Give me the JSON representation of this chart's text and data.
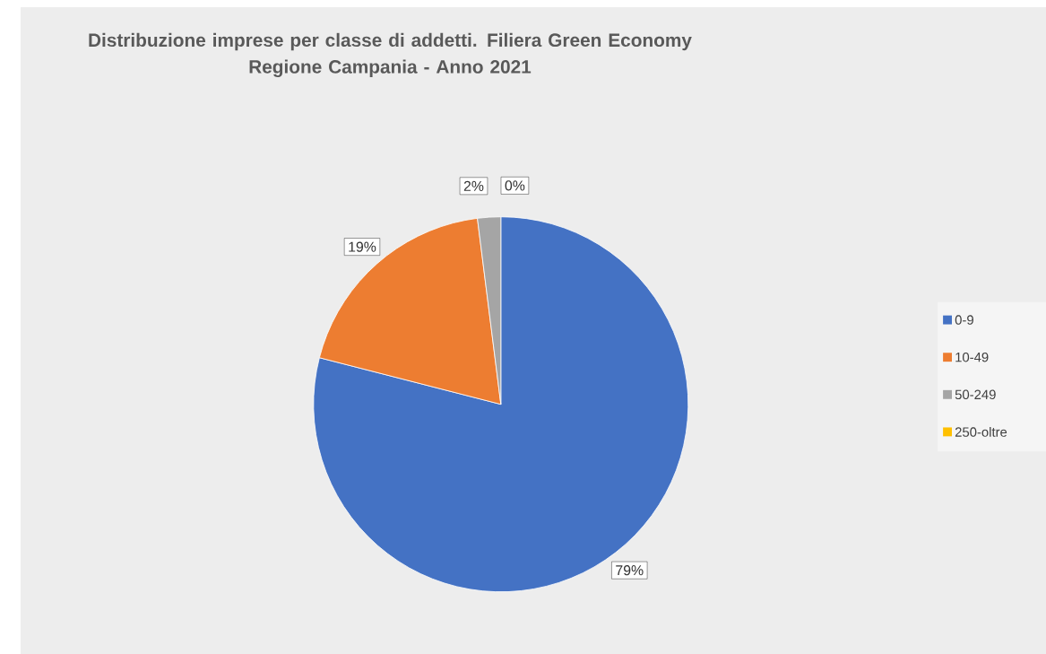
{
  "chart_data": {
    "type": "pie",
    "title": "Distribuzione imprese per classe di addetti. Filiera Green Economy\nRegione Campania - Anno 2021",
    "categories": [
      "0-9",
      "10-49",
      "50-249",
      "250-oltre"
    ],
    "values": [
      79,
      19,
      2,
      0
    ],
    "value_labels": [
      "79%",
      "19%",
      "2%",
      "0%"
    ],
    "colors": [
      "#4472c4",
      "#ed7d31",
      "#a5a5a5",
      "#ffc000"
    ],
    "data_labels": true,
    "legend": "right"
  }
}
